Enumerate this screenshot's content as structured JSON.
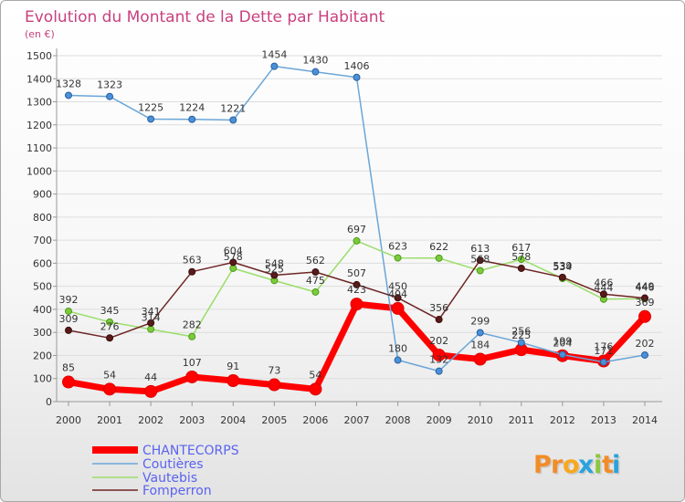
{
  "chart_data": {
    "type": "line",
    "title": "Evolution du Montant de la Dette par Habitant",
    "subtitle": "(en €)",
    "xlabel": "",
    "ylabel": "",
    "x": [
      "2000",
      "2001",
      "2002",
      "2003",
      "2004",
      "2005",
      "2006",
      "2007",
      "2008",
      "2009",
      "2010",
      "2011",
      "2012",
      "2013",
      "2014"
    ],
    "ylim": [
      0,
      1500
    ],
    "yticks": [
      0,
      100,
      200,
      300,
      400,
      500,
      600,
      700,
      800,
      900,
      1000,
      1100,
      1200,
      1300,
      1400,
      1500
    ],
    "grid": true,
    "legend": "bottom-left",
    "series": [
      {
        "name": "CHANTECORPS",
        "color": "#ff0000",
        "marker": "#ff0000",
        "marker_stroke": "#e00000",
        "width": "thick",
        "values": [
          85,
          54,
          44,
          107,
          91,
          73,
          54,
          423,
          404,
          202,
          184,
          225,
          199,
          176,
          369
        ]
      },
      {
        "name": "Coutières",
        "color": "#6aa6d8",
        "marker": "#4a90d9",
        "marker_stroke": "#2a5f9e",
        "width": "thin",
        "values": [
          1328,
          1323,
          1225,
          1224,
          1221,
          1454,
          1430,
          1406,
          180,
          132,
          299,
          256,
          204,
          171,
          202
        ]
      },
      {
        "name": "Vautebis",
        "color": "#9ade6a",
        "marker": "#7acc3a",
        "marker_stroke": "#4f9a1c",
        "width": "thin",
        "values": [
          392,
          345,
          314,
          282,
          578,
          525,
          475,
          697,
          623,
          622,
          568,
          617,
          534,
          444,
          446
        ]
      },
      {
        "name": "Fomperron",
        "color": "#6e2525",
        "marker": "#5a1a1a",
        "marker_stroke": "#3a0d0d",
        "width": "thin",
        "values": [
          309,
          276,
          341,
          563,
          604,
          548,
          562,
          507,
          450,
          356,
          613,
          578,
          539,
          466,
          449
        ]
      }
    ]
  },
  "logo": {
    "text": "Proxiti",
    "colors": [
      "#f28c28",
      "#f28c28",
      "#f7a81e",
      "#2aa3dc",
      "#8dc63f",
      "#f28c28",
      "#2aa3dc"
    ]
  }
}
